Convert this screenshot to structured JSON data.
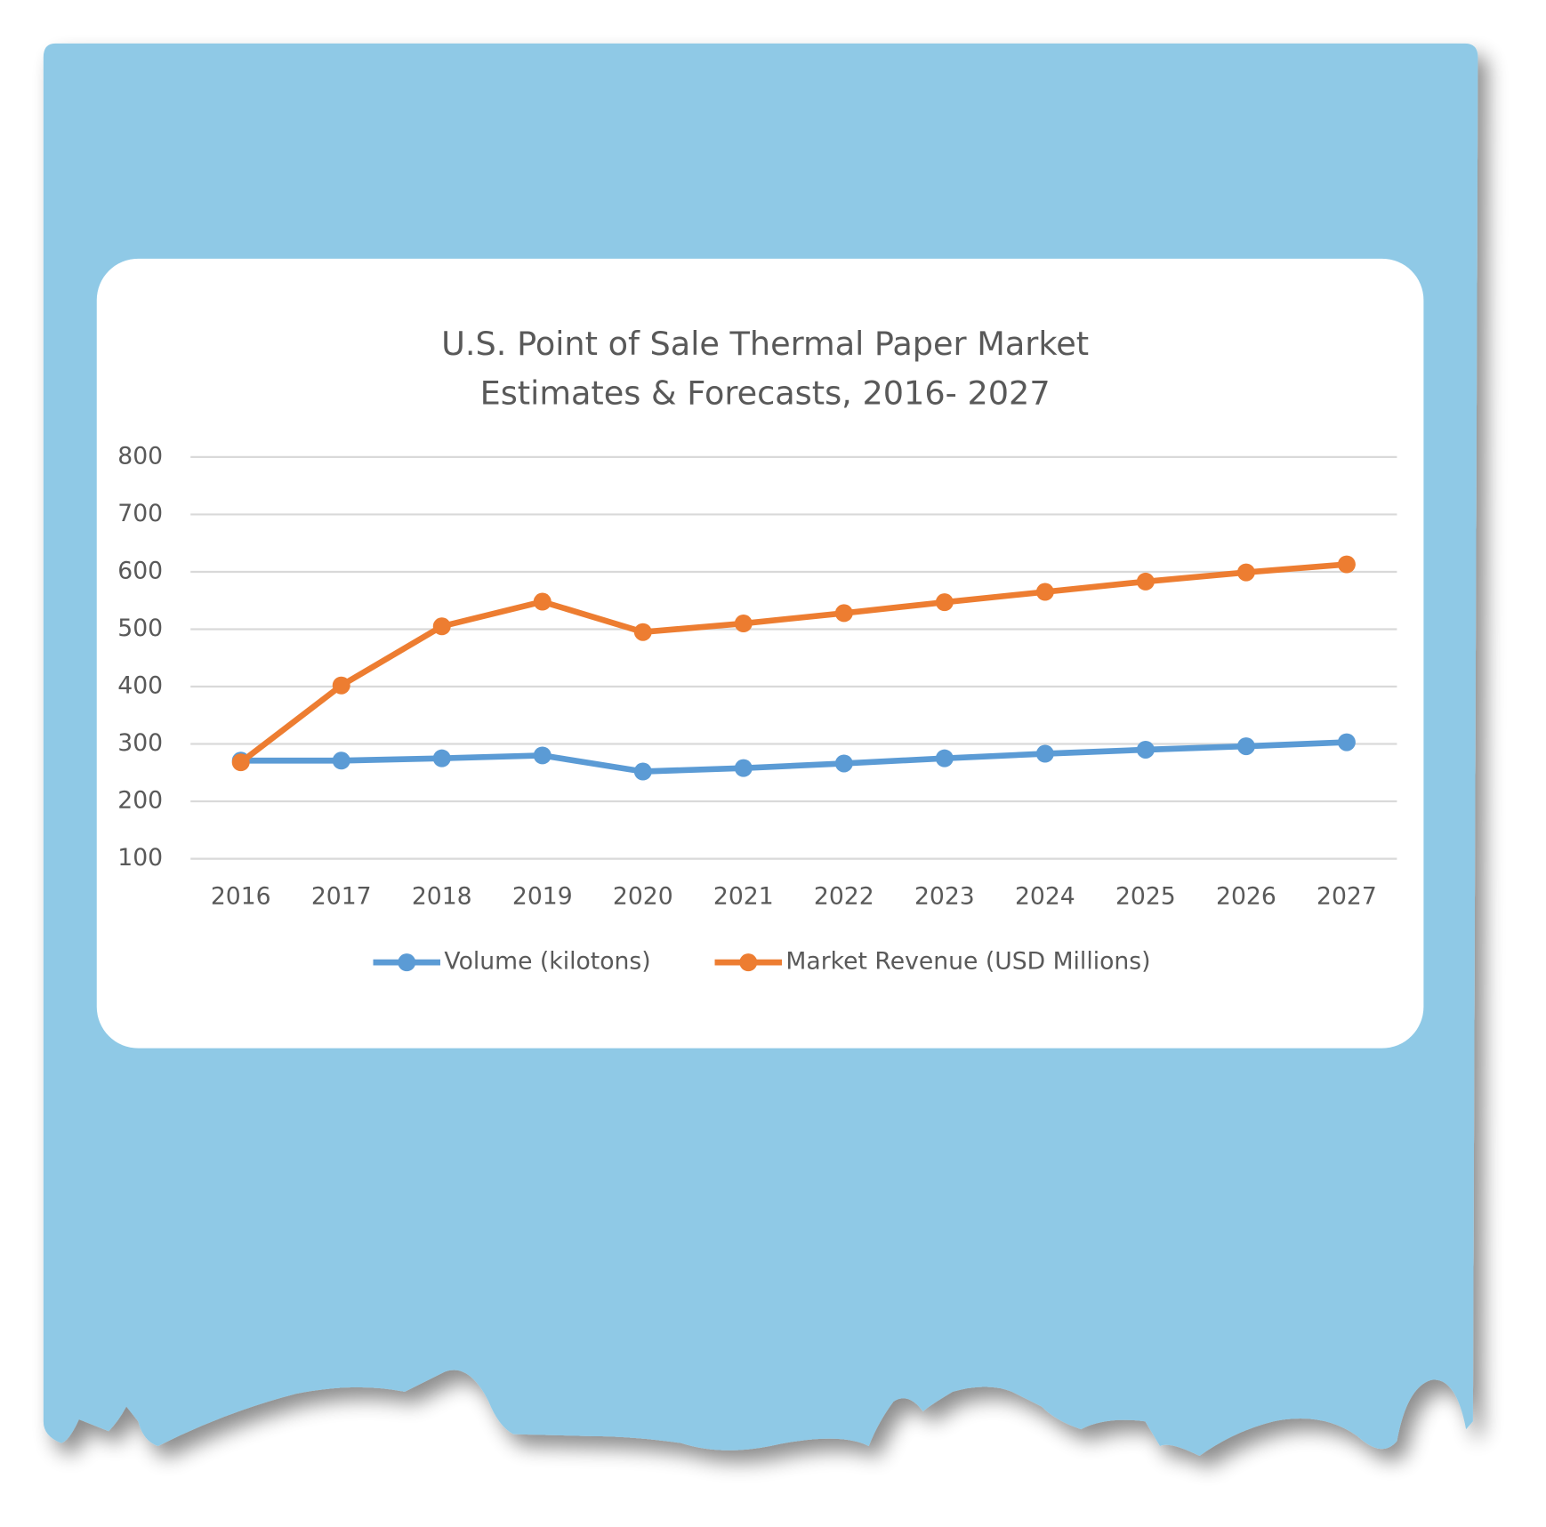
{
  "chart_data": {
    "type": "line",
    "title": "U.S. Point of Sale Thermal Paper Market",
    "subtitle": "Estimates & Forecasts, 2016- 2027",
    "categories": [
      "2016",
      "2017",
      "2018",
      "2019",
      "2020",
      "2021",
      "2022",
      "2023",
      "2024",
      "2025",
      "2026",
      "2027"
    ],
    "series": [
      {
        "name": "Volume (kilotons)",
        "color": "#5b9bd5",
        "values": [
          271,
          271,
          275,
          280,
          252,
          258,
          266,
          275,
          283,
          290,
          296,
          303
        ]
      },
      {
        "name": "Market Revenue (USD Millions)",
        "color": "#ed7d31",
        "values": [
          268,
          402,
          505,
          548,
          495,
          510,
          528,
          547,
          565,
          583,
          599,
          613
        ]
      }
    ],
    "ylim": [
      100,
      800
    ],
    "yticks": [
      100,
      200,
      300,
      400,
      500,
      600,
      700,
      800
    ],
    "grid": true,
    "legend": "bottom"
  }
}
